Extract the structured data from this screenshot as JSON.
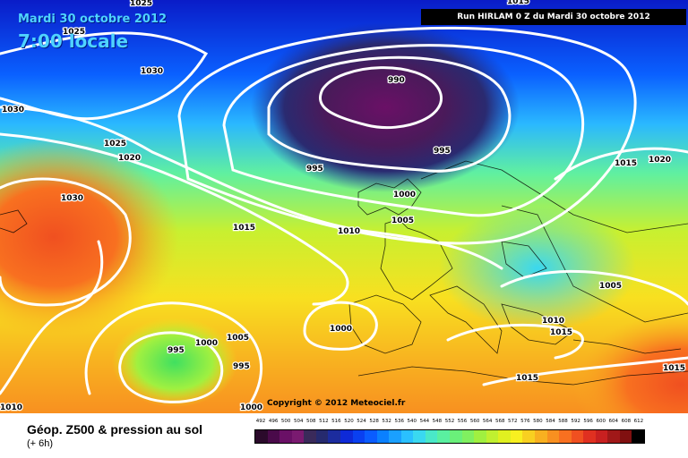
{
  "header": {
    "date": "Mardi 30 octobre 2012",
    "time": "7:00 locale",
    "run": "Run HIRLAM 0 Z du Mardi 30 octobre 2012"
  },
  "map": {
    "copyright": "Copyright © 2012 Meteociel.fr",
    "isobar_labels": [
      "1025",
      "1025",
      "1030",
      "1030",
      "990",
      "995",
      "995",
      "1025",
      "1020",
      "1015",
      "1020",
      "1000",
      "1005",
      "1010",
      "1015",
      "1030",
      "1015",
      "1000",
      "1005",
      "995",
      "1000",
      "995",
      "1010",
      "1010",
      "1000",
      "1015",
      "1015",
      "1005",
      "1015"
    ]
  },
  "legend": {
    "parameter": "Géop. Z500 & pression au sol",
    "step": "(+ 6h)",
    "scale_values": [
      "492",
      "496",
      "500",
      "504",
      "508",
      "512",
      "516",
      "520",
      "524",
      "528",
      "532",
      "536",
      "540",
      "544",
      "548",
      "552",
      "556",
      "560",
      "564",
      "568",
      "572",
      "576",
      "580",
      "584",
      "588",
      "592",
      "596",
      "600",
      "604",
      "608",
      "612"
    ],
    "scale_colors": [
      "#2b0a2b",
      "#4a0a4a",
      "#6a1066",
      "#7a1a70",
      "#3a2a5a",
      "#262a6e",
      "#1c2c9e",
      "#0e2ad8",
      "#0a40f0",
      "#0a5cff",
      "#0a80ff",
      "#1aa0ff",
      "#2ac0ff",
      "#3ad8f0",
      "#4ae8c8",
      "#5af0a0",
      "#6af07a",
      "#80f060",
      "#a0f040",
      "#c0f030",
      "#e0f020",
      "#f8f020",
      "#f8d020",
      "#f8b020",
      "#f89020",
      "#f87020",
      "#f05020",
      "#e03020",
      "#c82020",
      "#a01818",
      "#801010",
      "#000000"
    ]
  }
}
